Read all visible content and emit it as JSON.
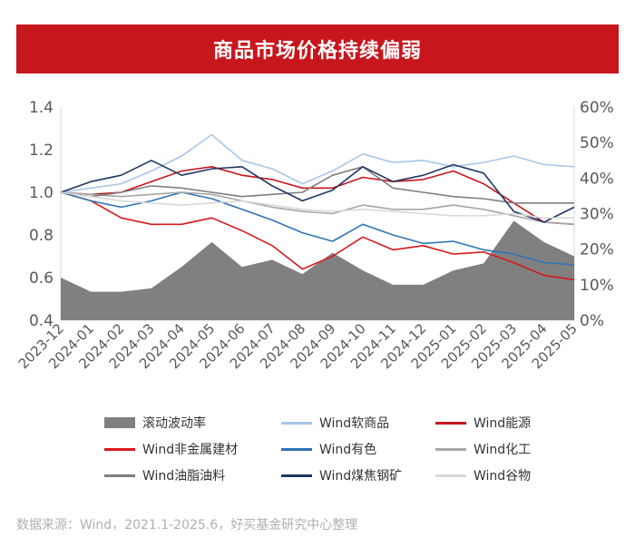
{
  "header": {
    "title": "商品市场价格持续偏弱"
  },
  "source": "数据来源：Wind，2021.1-2025.6，好买基金研究中心整理",
  "chart_data": {
    "type": "line",
    "x": [
      "2023-12",
      "2024-01",
      "2024-02",
      "2024-03",
      "2024-04",
      "2024-05",
      "2024-06",
      "2024-07",
      "2024-08",
      "2024-09",
      "2024-10",
      "2024-11",
      "2024-12",
      "2025-01",
      "2025-02",
      "2025-03",
      "2025-04",
      "2025-05"
    ],
    "left_axis": {
      "ylim": [
        0.4,
        1.4
      ],
      "ticks": [
        "0.4",
        "0.6",
        "0.8",
        "1.0",
        "1.2",
        "1.4"
      ]
    },
    "right_axis": {
      "ylim": [
        0,
        60
      ],
      "ticks": [
        "0%",
        "10%",
        "20%",
        "30%",
        "40%",
        "50%",
        "60%"
      ]
    },
    "area_series": {
      "name": "滚动波动率",
      "color": "#808080",
      "axis": "right",
      "values": [
        12,
        8,
        8,
        9,
        15,
        22,
        15,
        17,
        13,
        19,
        14,
        10,
        10,
        14,
        16,
        28,
        22,
        18
      ]
    },
    "series": [
      {
        "name": "Wind软商品",
        "color": "#a9c6e8",
        "axis": "left",
        "values": [
          1.0,
          1.02,
          1.04,
          1.1,
          1.17,
          1.27,
          1.15,
          1.11,
          1.04,
          1.1,
          1.18,
          1.14,
          1.15,
          1.12,
          1.14,
          1.17,
          1.13,
          1.12
        ]
      },
      {
        "name": "Wind能源",
        "color": "#c8161d",
        "axis": "left",
        "values": [
          1.0,
          0.99,
          1.0,
          1.05,
          1.1,
          1.12,
          1.08,
          1.06,
          1.02,
          1.02,
          1.07,
          1.05,
          1.06,
          1.1,
          1.04,
          0.95,
          0.86,
          0.85
        ]
      },
      {
        "name": "Wind非金属建材",
        "color": "#d7191c",
        "axis": "left",
        "values": [
          1.0,
          0.96,
          0.88,
          0.85,
          0.85,
          0.88,
          0.82,
          0.75,
          0.64,
          0.7,
          0.79,
          0.73,
          0.75,
          0.71,
          0.72,
          0.67,
          0.61,
          0.59
        ]
      },
      {
        "name": "Wind有色",
        "color": "#2e75b6",
        "axis": "left",
        "values": [
          1.0,
          0.96,
          0.93,
          0.96,
          1.0,
          0.97,
          0.92,
          0.87,
          0.81,
          0.77,
          0.85,
          0.8,
          0.76,
          0.77,
          0.73,
          0.71,
          0.67,
          0.66
        ]
      },
      {
        "name": "Wind化工",
        "color": "#a6a6a6",
        "axis": "left",
        "values": [
          1.0,
          0.99,
          0.98,
          0.99,
          1.0,
          0.99,
          0.96,
          0.93,
          0.91,
          0.9,
          0.94,
          0.92,
          0.92,
          0.94,
          0.92,
          0.89,
          0.86,
          0.85
        ]
      },
      {
        "name": "Wind油脂油料",
        "color": "#7f7f7f",
        "axis": "left",
        "values": [
          1.0,
          0.98,
          1.0,
          1.03,
          1.02,
          1.0,
          0.98,
          0.99,
          1.0,
          1.08,
          1.12,
          1.02,
          1.0,
          0.98,
          0.97,
          0.95,
          0.95,
          0.95
        ]
      },
      {
        "name": "Wind煤焦钢矿",
        "color": "#1f3864",
        "axis": "left",
        "values": [
          1.0,
          1.05,
          1.08,
          1.15,
          1.08,
          1.11,
          1.12,
          1.03,
          0.96,
          1.01,
          1.12,
          1.05,
          1.08,
          1.13,
          1.09,
          0.91,
          0.86,
          0.93
        ]
      },
      {
        "name": "Wind谷物",
        "color": "#d9d9d9",
        "axis": "left",
        "values": [
          1.0,
          0.98,
          0.96,
          0.95,
          0.94,
          0.95,
          0.96,
          0.94,
          0.92,
          0.91,
          0.92,
          0.91,
          0.9,
          0.89,
          0.89,
          0.9,
          0.88,
          0.88
        ]
      }
    ],
    "legend_position": "bottom",
    "grid": false
  }
}
